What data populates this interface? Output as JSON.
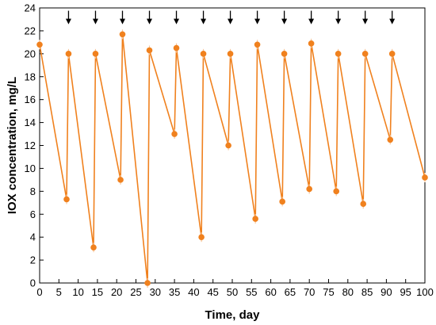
{
  "chart_data": {
    "type": "line",
    "title": "",
    "xlabel": "Time, day",
    "ylabel": "IOX concentration, mg/L",
    "xlim": [
      0,
      100
    ],
    "ylim": [
      0,
      24
    ],
    "x_ticks": [
      0,
      5,
      10,
      15,
      20,
      25,
      30,
      35,
      40,
      45,
      50,
      55,
      60,
      65,
      70,
      75,
      80,
      85,
      90,
      95,
      100
    ],
    "y_ticks": [
      0,
      2,
      4,
      6,
      8,
      10,
      12,
      14,
      16,
      18,
      20,
      22,
      24
    ],
    "grid": false,
    "legend": "none",
    "series": [
      {
        "color": "#f0811e",
        "points": [
          {
            "x": 0,
            "y": 20.8
          },
          {
            "x": 7,
            "y": 7.3
          },
          {
            "x": 7.5,
            "y": 20.0
          },
          {
            "x": 14,
            "y": 3.1
          },
          {
            "x": 14.5,
            "y": 20.0
          },
          {
            "x": 21,
            "y": 9.0
          },
          {
            "x": 21.5,
            "y": 21.7
          },
          {
            "x": 28,
            "y": 0.0
          },
          {
            "x": 28.5,
            "y": 20.3
          },
          {
            "x": 35,
            "y": 13.0
          },
          {
            "x": 35.5,
            "y": 20.5
          },
          {
            "x": 42,
            "y": 4.0
          },
          {
            "x": 42.5,
            "y": 20.0
          },
          {
            "x": 49,
            "y": 12.0
          },
          {
            "x": 49.5,
            "y": 20.0
          },
          {
            "x": 56,
            "y": 5.6
          },
          {
            "x": 56.5,
            "y": 20.8
          },
          {
            "x": 63,
            "y": 7.1
          },
          {
            "x": 63.5,
            "y": 20.0
          },
          {
            "x": 70,
            "y": 8.2
          },
          {
            "x": 70.5,
            "y": 20.9
          },
          {
            "x": 77,
            "y": 8.0
          },
          {
            "x": 77.5,
            "y": 20.0
          },
          {
            "x": 84,
            "y": 6.9
          },
          {
            "x": 84.5,
            "y": 20.0
          },
          {
            "x": 91,
            "y": 12.5
          },
          {
            "x": 91.5,
            "y": 20.0
          },
          {
            "x": 100,
            "y": 9.2
          }
        ]
      }
    ],
    "annotations": {
      "marker": "downward-arrow",
      "x": [
        7.5,
        14.5,
        21.5,
        28.5,
        35.5,
        42.5,
        49.5,
        56.5,
        63.5,
        70.5,
        77.5,
        84.5,
        91.5
      ],
      "y": 23.2
    }
  }
}
